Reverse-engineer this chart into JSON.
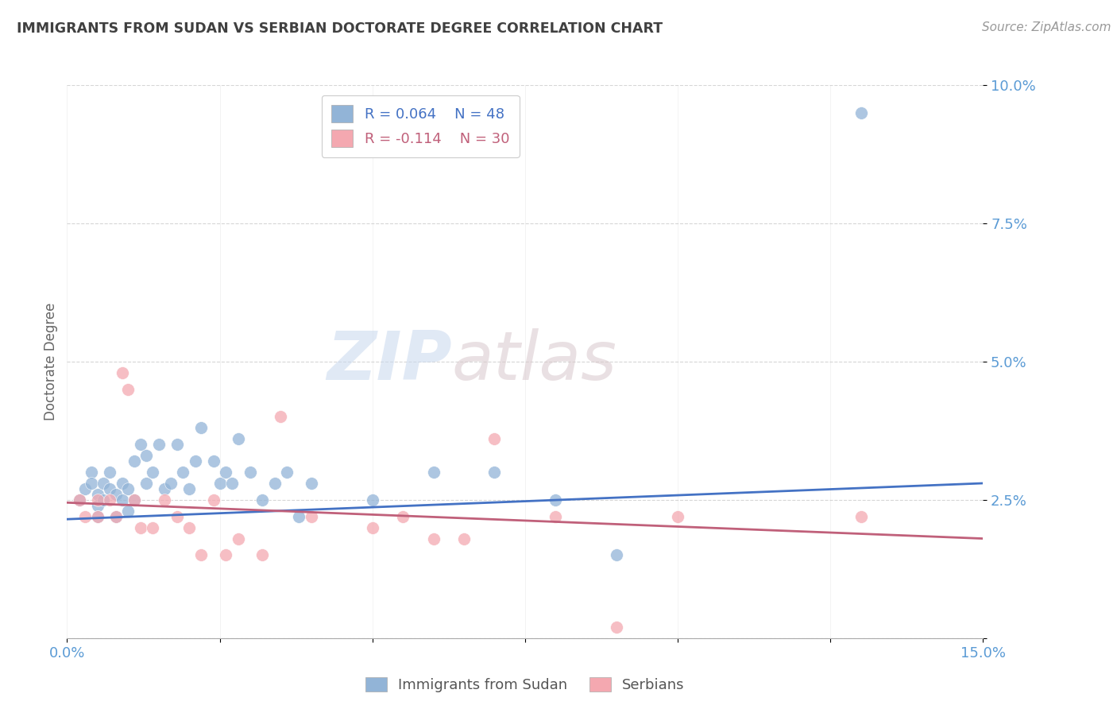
{
  "title": "IMMIGRANTS FROM SUDAN VS SERBIAN DOCTORATE DEGREE CORRELATION CHART",
  "source": "Source: ZipAtlas.com",
  "ylabel": "Doctorate Degree",
  "xlim": [
    0.0,
    0.15
  ],
  "ylim": [
    0.0,
    0.1
  ],
  "yticks": [
    0.0,
    0.025,
    0.05,
    0.075,
    0.1
  ],
  "ytick_labels": [
    "",
    "2.5%",
    "5.0%",
    "7.5%",
    "10.0%"
  ],
  "xticks": [
    0.0,
    0.025,
    0.05,
    0.075,
    0.1,
    0.125,
    0.15
  ],
  "xtick_labels": [
    "0.0%",
    "",
    "",
    "",
    "",
    "",
    "15.0%"
  ],
  "blue_color": "#92b4d7",
  "pink_color": "#f4a8b0",
  "blue_line_color": "#4472C4",
  "pink_line_color": "#c0607a",
  "title_color": "#404040",
  "axis_label_color": "#5B9BD5",
  "watermark_zip": "ZIP",
  "watermark_atlas": "atlas",
  "blue_scatter_x": [
    0.002,
    0.003,
    0.004,
    0.004,
    0.005,
    0.005,
    0.005,
    0.006,
    0.006,
    0.007,
    0.007,
    0.008,
    0.008,
    0.009,
    0.009,
    0.01,
    0.01,
    0.011,
    0.011,
    0.012,
    0.013,
    0.013,
    0.014,
    0.015,
    0.016,
    0.017,
    0.018,
    0.019,
    0.02,
    0.021,
    0.022,
    0.024,
    0.025,
    0.026,
    0.027,
    0.028,
    0.03,
    0.032,
    0.034,
    0.036,
    0.038,
    0.04,
    0.05,
    0.06,
    0.07,
    0.08,
    0.09,
    0.13
  ],
  "blue_scatter_y": [
    0.025,
    0.027,
    0.03,
    0.028,
    0.026,
    0.024,
    0.022,
    0.028,
    0.025,
    0.03,
    0.027,
    0.022,
    0.026,
    0.028,
    0.025,
    0.027,
    0.023,
    0.032,
    0.025,
    0.035,
    0.028,
    0.033,
    0.03,
    0.035,
    0.027,
    0.028,
    0.035,
    0.03,
    0.027,
    0.032,
    0.038,
    0.032,
    0.028,
    0.03,
    0.028,
    0.036,
    0.03,
    0.025,
    0.028,
    0.03,
    0.022,
    0.028,
    0.025,
    0.03,
    0.03,
    0.025,
    0.015,
    0.095
  ],
  "pink_scatter_x": [
    0.002,
    0.003,
    0.005,
    0.005,
    0.007,
    0.008,
    0.009,
    0.01,
    0.011,
    0.012,
    0.014,
    0.016,
    0.018,
    0.02,
    0.022,
    0.024,
    0.026,
    0.028,
    0.032,
    0.035,
    0.04,
    0.05,
    0.055,
    0.06,
    0.065,
    0.07,
    0.08,
    0.09,
    0.1,
    0.13
  ],
  "pink_scatter_y": [
    0.025,
    0.022,
    0.025,
    0.022,
    0.025,
    0.022,
    0.048,
    0.045,
    0.025,
    0.02,
    0.02,
    0.025,
    0.022,
    0.02,
    0.015,
    0.025,
    0.015,
    0.018,
    0.015,
    0.04,
    0.022,
    0.02,
    0.022,
    0.018,
    0.018,
    0.036,
    0.022,
    0.002,
    0.022,
    0.022
  ],
  "blue_line_x": [
    0.0,
    0.15
  ],
  "blue_line_y_start": 0.0215,
  "blue_line_y_end": 0.028,
  "pink_line_x": [
    0.0,
    0.15
  ],
  "pink_line_y_start": 0.0245,
  "pink_line_y_end": 0.018
}
